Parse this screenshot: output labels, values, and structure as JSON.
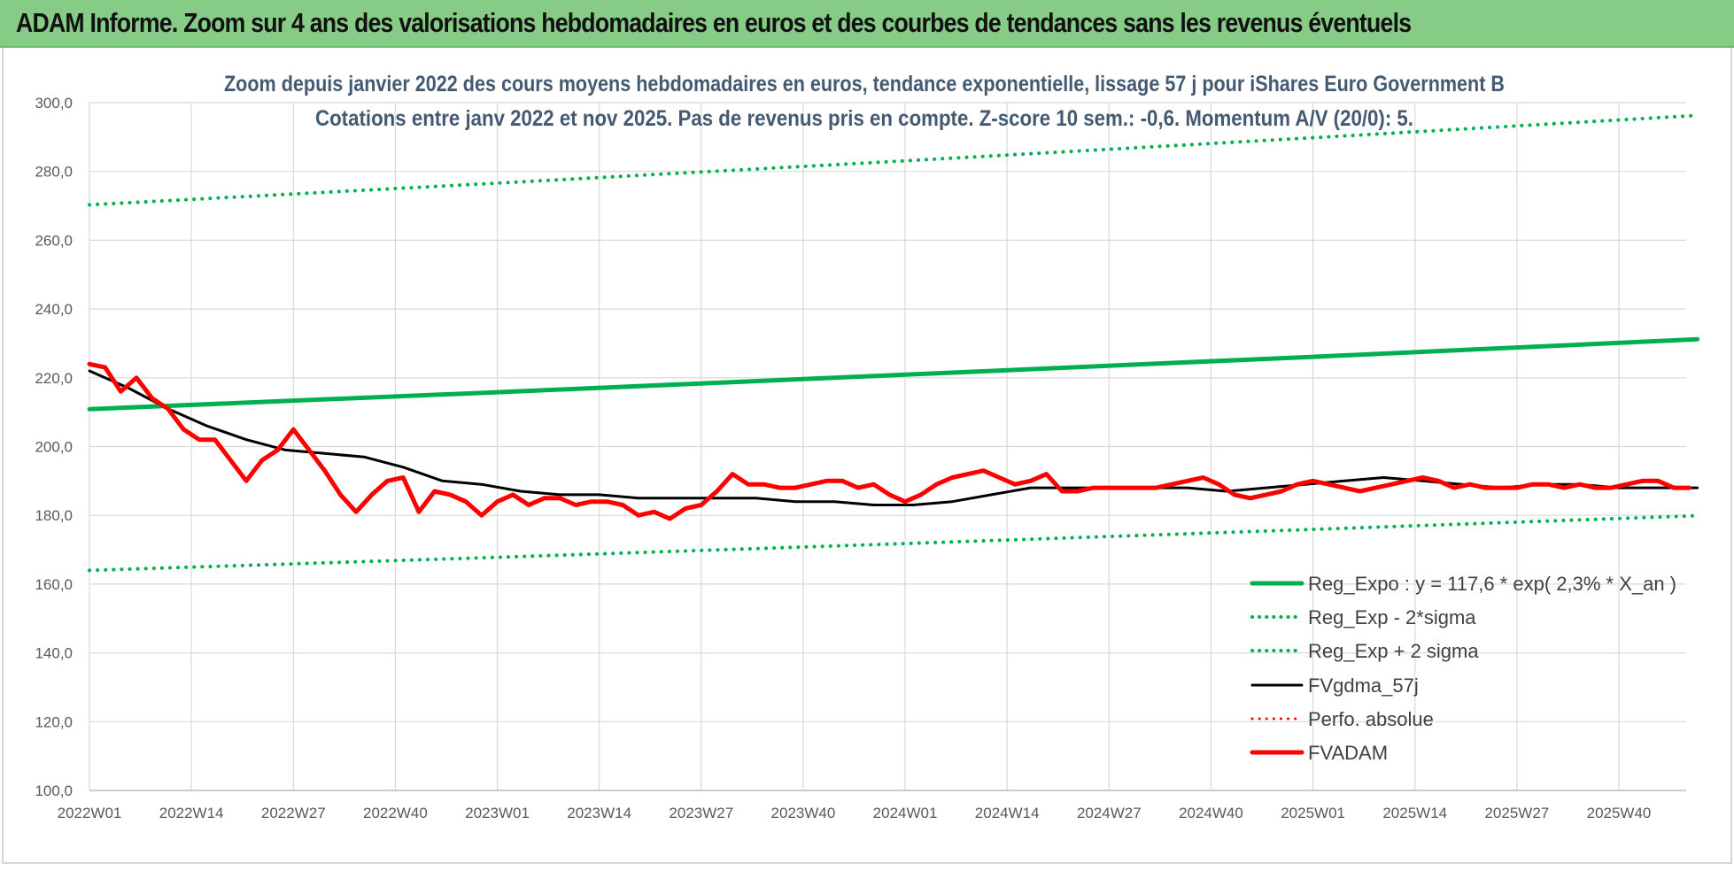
{
  "header": {
    "title": "ADAM Informe. Zoom sur 4 ans des valorisations hebdomadaires en euros et des courbes de tendances sans les revenus éventuels"
  },
  "chart_data": {
    "type": "line",
    "title_line1": "Zoom depuis janvier 2022 des cours moyens hebdomadaires en euros, tendance exponentielle, lissage 57 j pour iShares Euro Government B",
    "title_line2": "Cotations entre janv 2022 et nov 2025. Pas de revenus pris en compte. Z-score 10 sem.: -0,6. Momentum A/V (20/0): 5.",
    "ylim": [
      100,
      300
    ],
    "y_ticks": [
      "100,0",
      "120,0",
      "140,0",
      "160,0",
      "180,0",
      "200,0",
      "220,0",
      "240,0",
      "260,0",
      "280,0",
      "300,0"
    ],
    "x_ticks": [
      "2022W01",
      "2022W14",
      "2022W27",
      "2022W40",
      "2023W01",
      "2023W14",
      "2023W27",
      "2023W40",
      "2024W01",
      "2024W14",
      "2024W27",
      "2024W40",
      "2025W01",
      "2025W14",
      "2025W27",
      "2025W40"
    ],
    "x_range_weeks": [
      0,
      205
    ],
    "grid": true,
    "legend_position": "bottom-right",
    "series": [
      {
        "name": "Reg_Expo : y = 117,6 * exp( 2,3% *  X_an )",
        "color": "#00b050",
        "style": "solid",
        "width": 5,
        "x": [
          0,
          52,
          104,
          156,
          205
        ],
        "values": [
          210.9,
          215.8,
          220.9,
          226.1,
          231.2
        ]
      },
      {
        "name": "Reg_Exp - 2*sigma",
        "color": "#00b050",
        "style": "dotted",
        "width": 4,
        "x": [
          0,
          52,
          104,
          156,
          205
        ],
        "values": [
          164.0,
          167.8,
          171.8,
          175.9,
          179.9
        ]
      },
      {
        "name": "Reg_Exp + 2 sigma",
        "color": "#00b050",
        "style": "dotted",
        "width": 4,
        "x": [
          0,
          52,
          104,
          156,
          205
        ],
        "values": [
          270.3,
          276.6,
          283.1,
          289.8,
          296.3
        ]
      },
      {
        "name": "FVgdma_57j",
        "color": "#000000",
        "style": "solid",
        "width": 3,
        "x": [
          0,
          5,
          10,
          15,
          20,
          25,
          30,
          35,
          40,
          45,
          50,
          55,
          60,
          65,
          70,
          75,
          80,
          85,
          90,
          95,
          100,
          105,
          110,
          115,
          120,
          125,
          130,
          135,
          140,
          145,
          150,
          155,
          160,
          165,
          170,
          175,
          180,
          185,
          190,
          195,
          200,
          205
        ],
        "values": [
          222,
          217,
          211,
          206,
          202,
          199,
          198,
          197,
          194,
          190,
          189,
          187,
          186,
          186,
          185,
          185,
          185,
          185,
          184,
          184,
          183,
          183,
          184,
          186,
          188,
          188,
          188,
          188,
          188,
          187,
          188,
          189,
          190,
          191,
          190,
          189,
          188,
          189,
          189,
          188,
          188,
          188
        ]
      },
      {
        "name": "Perfo. absolue",
        "color": "#ff0000",
        "style": "dotted",
        "width": 3,
        "x": [],
        "values": []
      },
      {
        "name": "FVADAM",
        "color": "#ff0000",
        "style": "solid",
        "width": 5,
        "x": [
          0,
          2,
          4,
          6,
          8,
          10,
          12,
          14,
          16,
          18,
          20,
          22,
          24,
          26,
          28,
          30,
          32,
          34,
          36,
          38,
          40,
          42,
          44,
          46,
          48,
          50,
          52,
          54,
          56,
          58,
          60,
          62,
          64,
          66,
          68,
          70,
          72,
          74,
          76,
          78,
          80,
          82,
          84,
          86,
          88,
          90,
          92,
          94,
          96,
          98,
          100,
          102,
          104,
          106,
          108,
          110,
          112,
          114,
          116,
          118,
          120,
          122,
          124,
          126,
          128,
          130,
          132,
          134,
          136,
          138,
          140,
          142,
          144,
          146,
          148,
          150,
          152,
          154,
          156,
          158,
          160,
          162,
          164,
          166,
          168,
          170,
          172,
          174,
          176,
          178,
          180,
          182,
          184,
          186,
          188,
          190,
          192,
          194,
          196,
          198,
          200,
          202,
          204
        ],
        "values": [
          224,
          223,
          216,
          220,
          214,
          211,
          205,
          202,
          202,
          196,
          190,
          196,
          199,
          205,
          199,
          193,
          186,
          181,
          186,
          190,
          191,
          181,
          187,
          186,
          184,
          180,
          184,
          186,
          183,
          185,
          185,
          183,
          184,
          184,
          183,
          180,
          181,
          179,
          182,
          183,
          187,
          192,
          189,
          189,
          188,
          188,
          189,
          190,
          190,
          188,
          189,
          186,
          184,
          186,
          189,
          191,
          192,
          193,
          191,
          189,
          190,
          192,
          187,
          187,
          188,
          188,
          188,
          188,
          188,
          189,
          190,
          191,
          189,
          186,
          185,
          186,
          187,
          189,
          190,
          189,
          188,
          187,
          188,
          189,
          190,
          191,
          190,
          188,
          189,
          188,
          188,
          188,
          189,
          189,
          188,
          189,
          188,
          188,
          189,
          190,
          190,
          188,
          188
        ]
      }
    ]
  }
}
